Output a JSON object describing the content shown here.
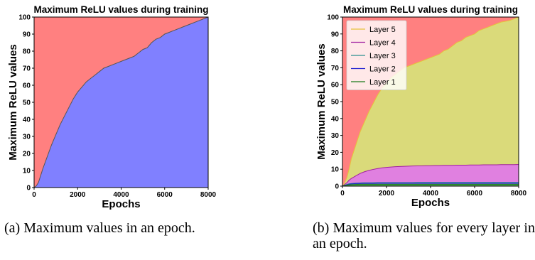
{
  "chart_data": [
    {
      "type": "area",
      "title": "Maximum ReLU values during training",
      "xlabel": "Epochs",
      "ylabel": "Maximum ReLU values",
      "xlim": [
        0,
        8000
      ],
      "ylim": [
        0,
        100
      ],
      "xticks": [
        0,
        2000,
        4000,
        6000,
        8000
      ],
      "yticks": [
        0,
        10,
        20,
        30,
        40,
        50,
        60,
        70,
        80,
        90,
        100
      ],
      "grid": false,
      "background_color": "#ff8080",
      "series": [
        {
          "color": "#8080ff",
          "x": [
            0,
            100,
            200,
            300,
            400,
            600,
            800,
            1000,
            1200,
            1400,
            1600,
            1800,
            2000,
            2200,
            2400,
            2600,
            2800,
            3000,
            3200,
            3400,
            3600,
            3800,
            4000,
            4200,
            4400,
            4600,
            4800,
            5000,
            5200,
            5400,
            5600,
            5800,
            6000,
            6200,
            6400,
            6600,
            6800,
            7000,
            7200,
            7400,
            7600,
            7800,
            8000
          ],
          "y": [
            0,
            1,
            3,
            7,
            11,
            18,
            25,
            31,
            37,
            42,
            47,
            52,
            56,
            59,
            62,
            64,
            66,
            68,
            70,
            71,
            72,
            73,
            74,
            75,
            76,
            77,
            79,
            81,
            82,
            85,
            87,
            88,
            90,
            91,
            92,
            93,
            94,
            95,
            96,
            97,
            98,
            99,
            100
          ]
        }
      ],
      "caption": "(a) Maximum values in an epoch."
    },
    {
      "type": "area",
      "title": "Maximum ReLU values during training",
      "xlabel": "Epochs",
      "ylabel": "Maximum ReLU values",
      "xlim": [
        0,
        8000
      ],
      "ylim": [
        0,
        100
      ],
      "xticks": [
        0,
        2000,
        4000,
        6000,
        8000
      ],
      "yticks": [
        0,
        10,
        20,
        30,
        40,
        50,
        60,
        70,
        80,
        90,
        100
      ],
      "grid": false,
      "legend": "top-left",
      "background_color": "#ff8080",
      "x": [
        0,
        100,
        200,
        300,
        400,
        600,
        800,
        1000,
        1200,
        1400,
        1600,
        1800,
        2000,
        2200,
        2400,
        2600,
        2800,
        3000,
        3200,
        3400,
        3600,
        3800,
        4000,
        4200,
        4400,
        4600,
        4800,
        5000,
        5200,
        5400,
        5600,
        5800,
        6000,
        6200,
        6400,
        6600,
        6800,
        7000,
        7200,
        7400,
        7600,
        7800,
        8000
      ],
      "series": [
        {
          "name": "Layer 5",
          "color": "#dada7a",
          "line_color": "#e8c13a",
          "y": [
            0,
            2,
            5,
            10,
            16,
            24,
            32,
            38,
            44,
            49,
            54,
            58,
            61,
            64,
            66,
            68,
            70,
            71,
            72,
            73,
            74,
            75,
            76,
            77,
            78,
            80,
            81,
            83,
            85,
            86,
            88,
            89,
            90,
            92,
            93,
            94,
            95,
            96,
            97,
            97.5,
            98,
            99,
            100
          ]
        },
        {
          "name": "Layer 4",
          "color": "#e080e0",
          "line_color": "#a020a0",
          "y": [
            0,
            1,
            2,
            3.5,
            4.5,
            6,
            7.5,
            8.5,
            9.3,
            9.9,
            10.4,
            10.8,
            11.1,
            11.3,
            11.5,
            11.6,
            11.7,
            11.8,
            11.9,
            12,
            12,
            12.1,
            12.1,
            12.2,
            12.2,
            12.3,
            12.3,
            12.3,
            12.4,
            12.4,
            12.4,
            12.5,
            12.5,
            12.5,
            12.6,
            12.6,
            12.6,
            12.6,
            12.7,
            12.7,
            12.7,
            12.7,
            12.8
          ]
        },
        {
          "name": "Layer 3",
          "color": "#66b8b8",
          "line_color": "#2a8f8f",
          "y": [
            0,
            0.5,
            1,
            1.4,
            1.6,
            1.8,
            1.9,
            2,
            2,
            2,
            2.1,
            2.1,
            2.1,
            2.1,
            2.1,
            2.1,
            2.1,
            2.1,
            2.1,
            2.2,
            2.2,
            2.2,
            2.2,
            2.2,
            2.2,
            2.2,
            2.2,
            2.2,
            2.2,
            2.2,
            2.2,
            2.2,
            2.2,
            2.2,
            2.2,
            2.2,
            2.2,
            2.2,
            2.2,
            2.2,
            2.2,
            2.2,
            2.2
          ]
        },
        {
          "name": "Layer 2",
          "color": "#6f6fc9",
          "line_color": "#2020d0",
          "y": [
            0,
            0.4,
            0.8,
            1.1,
            1.3,
            1.5,
            1.6,
            1.7,
            1.7,
            1.7,
            1.8,
            1.8,
            1.8,
            1.8,
            1.8,
            1.8,
            1.8,
            1.8,
            1.8,
            1.8,
            1.8,
            1.8,
            1.8,
            1.8,
            1.8,
            1.8,
            1.8,
            1.8,
            1.8,
            1.8,
            1.8,
            1.8,
            1.8,
            1.8,
            1.8,
            1.8,
            1.8,
            1.8,
            1.8,
            1.8,
            1.8,
            1.8,
            1.8
          ]
        },
        {
          "name": "Layer 1",
          "color": "#55a855",
          "line_color": "#1a7a1a",
          "y": [
            0,
            0.3,
            0.6,
            0.8,
            0.9,
            1,
            1.1,
            1.1,
            1.1,
            1.1,
            1.1,
            1.1,
            1.1,
            1.1,
            1.1,
            1.1,
            1.1,
            1.1,
            1.1,
            1.1,
            1.1,
            1.1,
            1.1,
            1.1,
            1.1,
            1.1,
            1.1,
            1.1,
            1.1,
            1.1,
            1.1,
            1.1,
            1.1,
            1.1,
            1.1,
            1.1,
            1.1,
            1.1,
            1.1,
            1.1,
            1.1,
            1.1,
            1.1
          ]
        }
      ],
      "caption": "(b) Maximum values for every layer in an epoch."
    }
  ]
}
